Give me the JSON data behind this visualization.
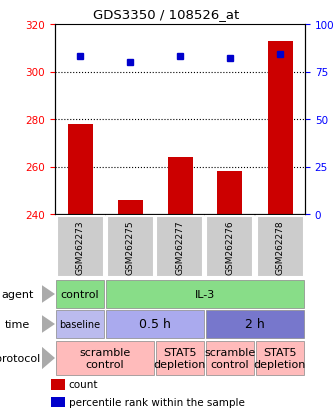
{
  "title": "GDS3350 / 108526_at",
  "samples": [
    "GSM262273",
    "GSM262275",
    "GSM262277",
    "GSM262276",
    "GSM262278"
  ],
  "bar_values": [
    278,
    246,
    264,
    258,
    313
  ],
  "bar_bottom": 240,
  "dot_values": [
    83,
    80,
    83,
    82,
    84
  ],
  "ylim_left": [
    240,
    320
  ],
  "ylim_right": [
    0,
    100
  ],
  "yticks_left": [
    240,
    260,
    280,
    300,
    320
  ],
  "yticks_right": [
    0,
    25,
    50,
    75,
    100
  ],
  "bar_color": "#cc0000",
  "dot_color": "#0000cc",
  "grid_lines": [
    260,
    280,
    300
  ],
  "agent_cells": [
    {
      "text": "control",
      "colspan": 1,
      "color": "#88dd88"
    },
    {
      "text": "IL-3",
      "colspan": 4,
      "color": "#88dd88"
    }
  ],
  "time_cells": [
    {
      "text": "baseline",
      "colspan": 1,
      "color": "#bbbbee",
      "fontsize": 7
    },
    {
      "text": "0.5 h",
      "colspan": 2,
      "color": "#aaaaee",
      "fontsize": 9
    },
    {
      "text": "2 h",
      "colspan": 2,
      "color": "#7777cc",
      "fontsize": 9
    }
  ],
  "protocol_cells": [
    {
      "text": "scramble\ncontrol",
      "colspan": 2,
      "color": "#ffbbbb"
    },
    {
      "text": "STAT5\ndepletion",
      "colspan": 1,
      "color": "#ffbbbb"
    },
    {
      "text": "scramble\ncontrol",
      "colspan": 1,
      "color": "#ffbbbb"
    },
    {
      "text": "STAT5\ndepletion",
      "colspan": 1,
      "color": "#ffbbbb"
    }
  ],
  "legend_items": [
    {
      "color": "#cc0000",
      "label": "count"
    },
    {
      "color": "#0000cc",
      "label": "percentile rank within the sample"
    }
  ],
  "row_labels": [
    "agent",
    "time",
    "protocol"
  ],
  "sample_box_color": "#cccccc",
  "fig_width": 3.33,
  "fig_height": 4.14,
  "dpi": 100
}
